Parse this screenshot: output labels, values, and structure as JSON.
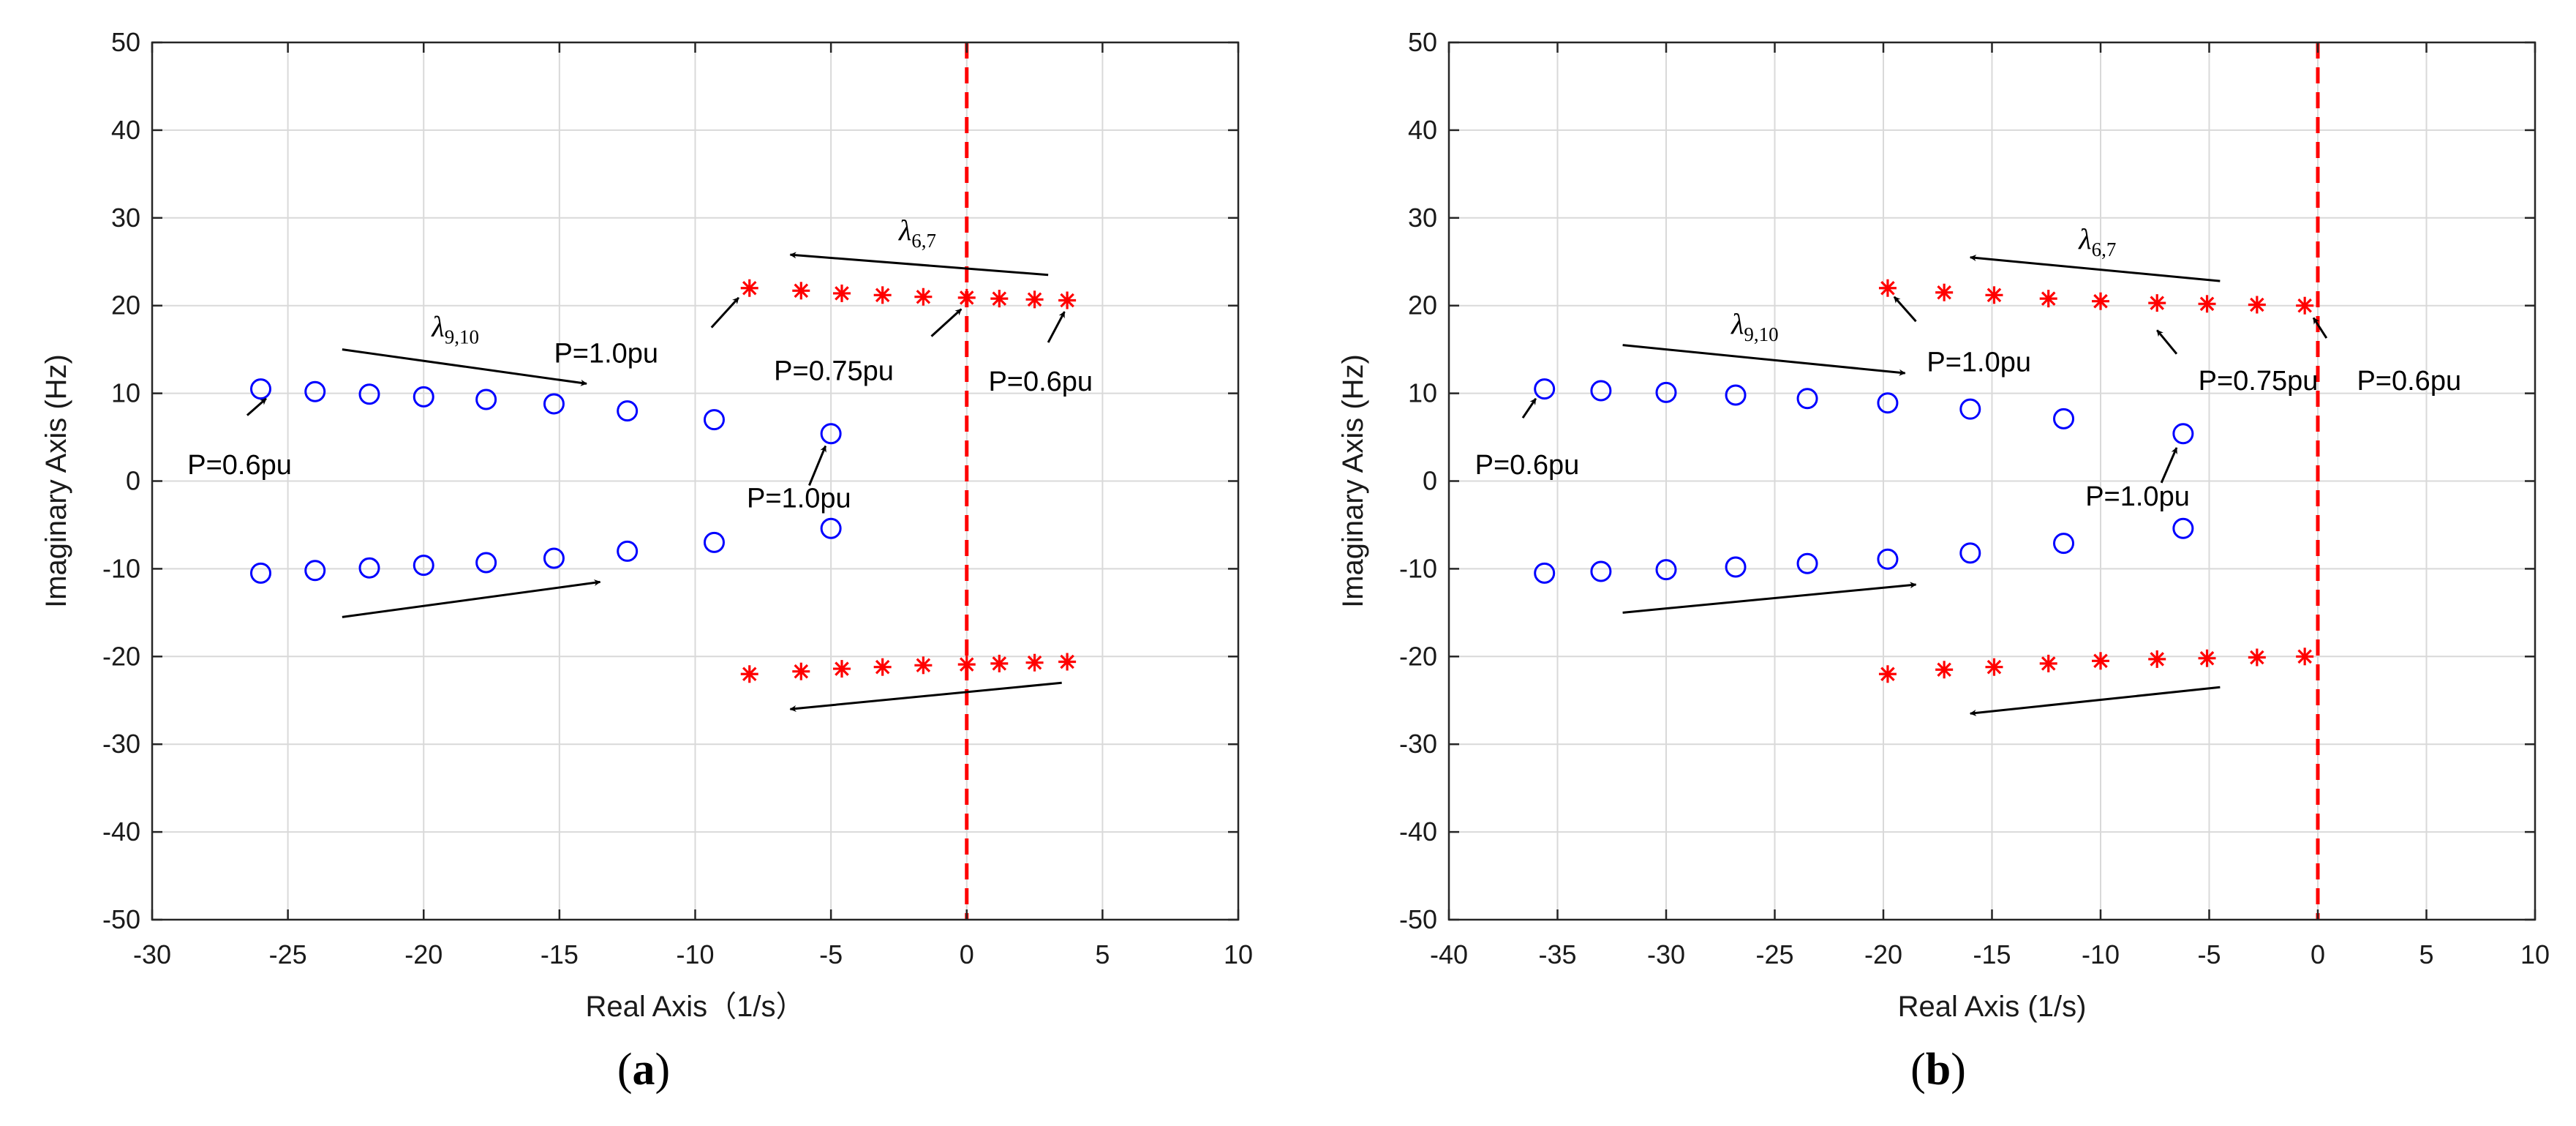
{
  "colors": {
    "circle": "#0000ff",
    "star": "#ff0000",
    "boundary": "#ff0000",
    "arrow": "#000000",
    "grid": "#d9d9d9"
  },
  "chart_data": [
    {
      "type": "scatter",
      "caption": {
        "open": "(",
        "letter": "a",
        "close": ")"
      },
      "xlabel": "Real Axis（1/s）",
      "ylabel": "Imaginary Axis (Hz)",
      "xlim": [
        -30,
        10
      ],
      "ylim": [
        -50,
        50
      ],
      "xticks": [
        -30,
        -25,
        -20,
        -15,
        -10,
        -5,
        0,
        5,
        10
      ],
      "yticks": [
        -50,
        -40,
        -30,
        -20,
        -10,
        0,
        10,
        20,
        30,
        40,
        50
      ],
      "xtick_labels": [
        "-30",
        "-25",
        "-20",
        "-15",
        "-10",
        "-5",
        "0",
        "5",
        "10"
      ],
      "ytick_labels": [
        "-50",
        "-40",
        "-30",
        "-20",
        "-10",
        "0",
        "10",
        "20",
        "30",
        "40",
        "50"
      ],
      "grid": true,
      "boundary_x": 0,
      "series": [
        {
          "name": "λ9,10 (o)",
          "marker": "circle",
          "x": [
            -26,
            -24,
            -22,
            -20,
            -17.7,
            -15.2,
            -12.5,
            -9.3,
            -5,
            -26,
            -24,
            -22,
            -20,
            -17.7,
            -15.2,
            -12.5,
            -9.3,
            -5
          ],
          "y": [
            10.5,
            10.2,
            9.9,
            9.6,
            9.3,
            8.8,
            8.0,
            7.0,
            5.4,
            -10.5,
            -10.2,
            -9.9,
            -9.6,
            -9.3,
            -8.8,
            -8.0,
            -7.0,
            -5.4
          ]
        },
        {
          "name": "λ6,7 (*)",
          "marker": "star",
          "x": [
            -8,
            -6.1,
            -4.6,
            -3.1,
            -1.6,
            0,
            1.2,
            2.5,
            3.7,
            -8,
            -6.1,
            -4.6,
            -3.1,
            -1.6,
            0,
            1.2,
            2.5,
            3.7
          ],
          "y": [
            22,
            21.7,
            21.4,
            21.2,
            21,
            20.9,
            20.8,
            20.7,
            20.6,
            -22,
            -21.7,
            -21.4,
            -21.2,
            -21,
            -20.9,
            -20.8,
            -20.7,
            -20.6
          ]
        }
      ],
      "arrows": [
        {
          "from": [
            3,
            23.5
          ],
          "to": [
            -6.5,
            25.8
          ]
        },
        {
          "from": [
            -23,
            15
          ],
          "to": [
            -14,
            11.1
          ]
        },
        {
          "from": [
            -23,
            -15.5
          ],
          "to": [
            -13.5,
            -11.5
          ]
        },
        {
          "from": [
            3.5,
            -23
          ],
          "to": [
            -6.5,
            -26
          ]
        },
        {
          "from": [
            -26.5,
            7.5
          ],
          "to": [
            -25.8,
            9.4
          ]
        },
        {
          "from": [
            -9.4,
            17.5
          ],
          "to": [
            -8.4,
            20.9
          ]
        },
        {
          "from": [
            -1.3,
            16.5
          ],
          "to": [
            -0.2,
            19.6
          ]
        },
        {
          "from": [
            3,
            15.8
          ],
          "to": [
            3.6,
            19.3
          ]
        },
        {
          "from": [
            -5.8,
            -0.5
          ],
          "to": [
            -5.2,
            4.0
          ]
        }
      ],
      "labels": [
        {
          "key": "lambda",
          "base": "λ",
          "sub": "6,7",
          "x": -2.5,
          "y": 27.5
        },
        {
          "key": "lambda",
          "base": "λ",
          "sub": "9,10",
          "x": -19.7,
          "y": 16.5
        },
        {
          "key": "text",
          "text": "P=1.0pu",
          "x": -15.2,
          "y": 13.5
        },
        {
          "key": "text",
          "text": "P=0.75pu",
          "x": -7.1,
          "y": 11.5
        },
        {
          "key": "text",
          "text": "P=0.6pu",
          "x": 0.8,
          "y": 10.3
        },
        {
          "key": "text",
          "text": "P=0.6pu",
          "x": -28.7,
          "y": 0.8
        },
        {
          "key": "text",
          "text": "P=1.0pu",
          "x": -8.1,
          "y": -3.0
        }
      ]
    },
    {
      "type": "scatter",
      "caption": {
        "open": "(",
        "letter": "b",
        "close": ")"
      },
      "xlabel": "Real Axis (1/s)",
      "ylabel": "Imaginary Axis (Hz)",
      "xlim": [
        -40,
        10
      ],
      "ylim": [
        -50,
        50
      ],
      "xticks": [
        -40,
        -35,
        -30,
        -25,
        -20,
        -15,
        -10,
        -5,
        0,
        5,
        10
      ],
      "yticks": [
        -50,
        -40,
        -30,
        -20,
        -10,
        0,
        10,
        20,
        30,
        40,
        50
      ],
      "xtick_labels": [
        "-40",
        "-35",
        "-30",
        "-25",
        "-20",
        "-15",
        "-10",
        "-5",
        "0",
        "5",
        "10"
      ],
      "ytick_labels": [
        "-50",
        "-40",
        "-30",
        "-20",
        "-10",
        "0",
        "10",
        "20",
        "30",
        "40",
        "50"
      ],
      "grid": true,
      "boundary_x": 0,
      "series": [
        {
          "name": "λ9,10 (o)",
          "marker": "circle",
          "x": [
            -35.6,
            -33,
            -30,
            -26.8,
            -23.5,
            -19.8,
            -16,
            -11.7,
            -6.2,
            -35.6,
            -33,
            -30,
            -26.8,
            -23.5,
            -19.8,
            -16,
            -11.7,
            -6.2
          ],
          "y": [
            10.5,
            10.3,
            10.1,
            9.8,
            9.4,
            8.9,
            8.2,
            7.1,
            5.4,
            -10.5,
            -10.3,
            -10.1,
            -9.8,
            -9.4,
            -8.9,
            -8.2,
            -7.1,
            -5.4
          ]
        },
        {
          "name": "λ6,7 (*)",
          "marker": "star",
          "x": [
            -19.8,
            -17.2,
            -14.9,
            -12.4,
            -10,
            -7.4,
            -5.1,
            -2.8,
            -0.6,
            -19.8,
            -17.2,
            -14.9,
            -12.4,
            -10,
            -7.4,
            -5.1,
            -2.8,
            -0.6
          ],
          "y": [
            22,
            21.5,
            21.2,
            20.8,
            20.5,
            20.3,
            20.2,
            20.1,
            20,
            -22,
            -21.5,
            -21.2,
            -20.8,
            -20.5,
            -20.3,
            -20.2,
            -20.1,
            -20
          ]
        },
        {
          "name": "",
          "marker": "none",
          "x": [],
          "y": []
        }
      ],
      "arrows": [
        {
          "from": [
            -4.5,
            22.8
          ],
          "to": [
            -16,
            25.5
          ]
        },
        {
          "from": [
            -32,
            15.5
          ],
          "to": [
            -19,
            12.3
          ]
        },
        {
          "from": [
            -32,
            -15
          ],
          "to": [
            -18.5,
            -11.8
          ]
        },
        {
          "from": [
            -4.5,
            -23.5
          ],
          "to": [
            -16,
            -26.5
          ]
        },
        {
          "from": [
            -36.6,
            7.2
          ],
          "to": [
            -36,
            9.4
          ]
        },
        {
          "from": [
            -18.5,
            18.2
          ],
          "to": [
            -19.5,
            21
          ]
        },
        {
          "from": [
            -6.5,
            14.5
          ],
          "to": [
            -7.4,
            17.2
          ]
        },
        {
          "from": [
            0.4,
            16.3
          ],
          "to": [
            -0.2,
            18.6
          ]
        },
        {
          "from": [
            -7.2,
            -0.2
          ],
          "to": [
            -6.5,
            3.8
          ]
        }
      ],
      "labels": [
        {
          "key": "lambda",
          "base": "λ",
          "sub": "6,7",
          "x": -11,
          "y": 26.5
        },
        {
          "key": "lambda",
          "base": "λ",
          "sub": "9,10",
          "x": -27,
          "y": 16.8
        },
        {
          "key": "text",
          "text": "P=1.0pu",
          "x": -18,
          "y": 12.5
        },
        {
          "key": "text",
          "text": "P=0.75pu",
          "x": -5.5,
          "y": 10.4
        },
        {
          "key": "text",
          "text": "P=0.6pu",
          "x": 1.8,
          "y": 10.4
        },
        {
          "key": "text",
          "text": "P=0.6pu",
          "x": -38.8,
          "y": 0.8
        },
        {
          "key": "text",
          "text": "P=1.0pu",
          "x": -10.7,
          "y": -2.8
        }
      ]
    }
  ]
}
